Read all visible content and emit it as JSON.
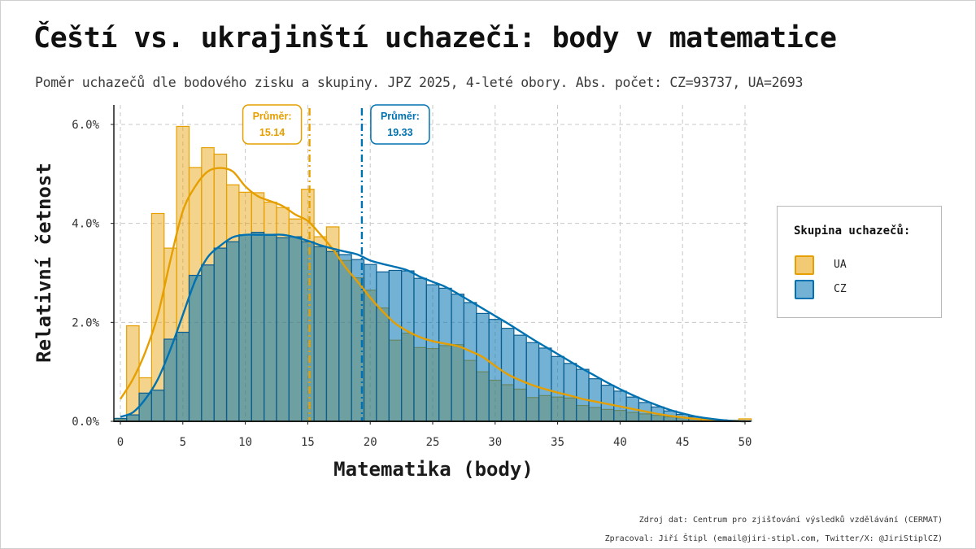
{
  "title": "Čeští vs. ukrajinští uchazeči: body v matematice",
  "subtitle": "Poměr uchazečů dle bodového zisku a skupiny. JPZ 2025, 4-leté obory. Abs. počet: CZ=93737, UA=2693",
  "caption": {
    "line1": "Zdroj dat: Centrum pro zjišťování výsledků vzdělávání (CERMAT)",
    "line2": "Zpracoval: Jiří Štipl (email@jiri-stipl.com, Twitter/X: @JiriStiplCZ)"
  },
  "legend": {
    "title": "Skupina uchazečů:",
    "items": [
      {
        "label": "UA",
        "color": "#E69F00"
      },
      {
        "label": "CZ",
        "color": "#0072B2"
      }
    ]
  },
  "chart_data": {
    "type": "histogram",
    "xlabel": "Matematika (body)",
    "ylabel": "Relativní četnost",
    "xlim": [
      -0.5,
      50.5
    ],
    "ylim": [
      0,
      0.065
    ],
    "xticks": [
      0,
      5,
      10,
      15,
      20,
      25,
      30,
      35,
      40,
      45,
      50
    ],
    "yticks": [
      0,
      0.02,
      0.04,
      0.06
    ],
    "ytick_labels": [
      "0.0%",
      "2.0%",
      "4.0%",
      "6.0%"
    ],
    "grid": true,
    "legend_position": "right",
    "x": [
      0,
      1,
      2,
      3,
      4,
      5,
      6,
      7,
      8,
      9,
      10,
      11,
      12,
      13,
      14,
      15,
      16,
      17,
      18,
      19,
      20,
      21,
      22,
      23,
      24,
      25,
      26,
      27,
      28,
      29,
      30,
      31,
      32,
      33,
      34,
      35,
      36,
      37,
      38,
      39,
      40,
      41,
      42,
      43,
      44,
      45,
      46,
      47,
      48,
      49,
      50
    ],
    "series": [
      {
        "name": "UA",
        "color": "#E69F00",
        "values": [
          0.0005,
          0.0193,
          0.0088,
          0.042,
          0.035,
          0.0596,
          0.0513,
          0.0553,
          0.054,
          0.0478,
          0.0463,
          0.0462,
          0.0443,
          0.0432,
          0.0409,
          0.0469,
          0.0373,
          0.0393,
          0.0325,
          0.029,
          0.0265,
          0.0229,
          0.0164,
          0.0178,
          0.0149,
          0.0147,
          0.0153,
          0.0155,
          0.0123,
          0.01,
          0.0083,
          0.0074,
          0.0065,
          0.0048,
          0.0052,
          0.0049,
          0.0047,
          0.0032,
          0.0028,
          0.0024,
          0.0022,
          0.0018,
          0.0015,
          0.0012,
          0.0009,
          0.0007,
          0.0005,
          0.0004,
          0.0003,
          0.0002,
          0.0005
        ],
        "density": [
          0.0045,
          0.0085,
          0.014,
          0.0215,
          0.0325,
          0.0425,
          0.0475,
          0.0505,
          0.0512,
          0.0505,
          0.0475,
          0.0455,
          0.0445,
          0.0435,
          0.0418,
          0.0405,
          0.0378,
          0.0348,
          0.0312,
          0.0282,
          0.025,
          0.0222,
          0.0198,
          0.0182,
          0.017,
          0.0162,
          0.0157,
          0.0152,
          0.0142,
          0.013,
          0.0112,
          0.0095,
          0.0083,
          0.0073,
          0.0065,
          0.0058,
          0.0052,
          0.0045,
          0.004,
          0.0035,
          0.003,
          0.0025,
          0.002,
          0.0015,
          0.0011,
          0.0008,
          0.0005,
          0.0003,
          0.0002,
          0.0001,
          0.0
        ],
        "mean": 15.14,
        "mean_label": "Průměr:",
        "mean_value": "15.14"
      },
      {
        "name": "CZ",
        "color": "#0072B2",
        "values": [
          0.0006,
          0.0013,
          0.0057,
          0.0063,
          0.0166,
          0.018,
          0.0295,
          0.0316,
          0.035,
          0.0363,
          0.0377,
          0.0382,
          0.0376,
          0.0371,
          0.0373,
          0.0363,
          0.0353,
          0.0343,
          0.0337,
          0.0327,
          0.0317,
          0.0302,
          0.0305,
          0.0304,
          0.0289,
          0.0276,
          0.0269,
          0.0257,
          0.024,
          0.0218,
          0.0206,
          0.0188,
          0.0174,
          0.0159,
          0.0148,
          0.0131,
          0.0117,
          0.0105,
          0.0086,
          0.0073,
          0.0061,
          0.0049,
          0.0038,
          0.0029,
          0.0021,
          0.0014,
          0.0009,
          0.0005,
          0.0003,
          0.0001,
          0.0001
        ],
        "density": [
          0.0009,
          0.0018,
          0.0045,
          0.0085,
          0.0145,
          0.0215,
          0.0285,
          0.0332,
          0.0355,
          0.0372,
          0.0377,
          0.0377,
          0.0377,
          0.0377,
          0.0372,
          0.0365,
          0.0356,
          0.0349,
          0.0343,
          0.0337,
          0.0325,
          0.0318,
          0.0312,
          0.0305,
          0.0292,
          0.0282,
          0.0272,
          0.0258,
          0.0243,
          0.0228,
          0.0213,
          0.0198,
          0.0182,
          0.0166,
          0.0151,
          0.0136,
          0.0121,
          0.0106,
          0.0092,
          0.0078,
          0.0065,
          0.0053,
          0.0042,
          0.0032,
          0.0023,
          0.0016,
          0.001,
          0.0006,
          0.0003,
          0.0001,
          0.0
        ],
        "mean": 19.33,
        "mean_label": "Průměr:",
        "mean_value": "19.33"
      }
    ]
  }
}
